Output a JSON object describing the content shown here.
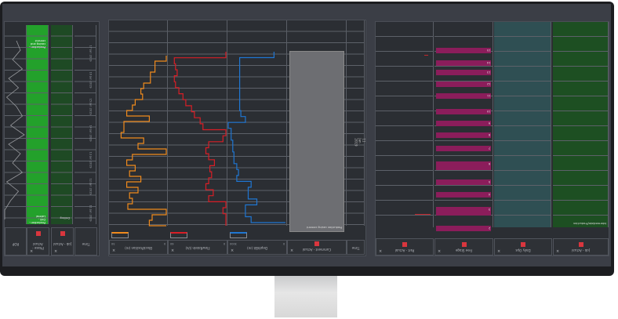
{
  "colors": {
    "orange": "#f08a1c",
    "red": "#d81e26",
    "blue": "#1f76d2",
    "green_bright": "#23a12b",
    "green_dark": "#1e4a24",
    "teal": "#2f4f53",
    "pink": "#8b1d5b",
    "gray_comment": "#6d6e72"
  },
  "left_panel": {
    "headers": [
      {
        "label": "ROP"
      },
      {
        "label": "Phase - Actual"
      },
      {
        "label": "Job - Actual"
      },
      {
        "label": "Time"
      }
    ],
    "track_labels": {
      "green_top": "Production - casing and cement",
      "green_bottom": "Production - Drill - Lateral",
      "dark_bottom": "Drilling"
    },
    "time_ticks": [
      "11 Jan 2019",
      "12 Jan 2019",
      "13 Jan 2019",
      "14 Jan 2019",
      "15 Jan 2019",
      "16 Jan 2019",
      "17 Jan 2019"
    ]
  },
  "middle_panel": {
    "headers": [
      {
        "label": "BlockPosition (m)",
        "min": "0",
        "max": "50"
      },
      {
        "label": "FlowRateIn (l/s)",
        "min": "0",
        "max": "60"
      },
      {
        "label": "DepthBit (m)",
        "min": "0",
        "max": "3000"
      },
      {
        "label": "Comment - Actual"
      },
      {
        "label": "Time"
      }
    ],
    "comment_text": "Production casing cement",
    "date_label": "11 Jan 2019",
    "traces": {
      "orange": [
        100,
        80,
        80,
        72,
        72,
        60,
        55,
        58,
        45,
        40,
        30,
        70,
        25,
        25,
        20,
        60,
        50,
        100,
        40,
        30,
        45,
        35,
        55,
        30,
        50,
        35,
        40,
        32,
        100,
        75,
        70,
        100
      ],
      "red": [
        100,
        10,
        12,
        15,
        10,
        12,
        18,
        25,
        30,
        40,
        45,
        55,
        60,
        100,
        95,
        70,
        65,
        70,
        80,
        72,
        75,
        70,
        65,
        78,
        70,
        100,
        95,
        100,
        100,
        100
      ],
      "blue": [
        80,
        20,
        20,
        20,
        20,
        20,
        20,
        20,
        20,
        20,
        22,
        30,
        0,
        5,
        5,
        8,
        8,
        10,
        10,
        15,
        18,
        15,
        40,
        35,
        35,
        50,
        30,
        30,
        40,
        100
      ]
    }
  },
  "right_panel": {
    "headers": [
      {
        "label": "Part - Actual"
      },
      {
        "label": "Free Stage"
      },
      {
        "label": "Daily Ops"
      },
      {
        "label": "Job - Actual"
      }
    ],
    "pink_bar_labels": [
      "15",
      "14",
      "13",
      "12",
      "11",
      "10",
      "9",
      "8",
      "7",
      "6",
      "5",
      "4",
      "3",
      "2",
      "1"
    ],
    "green_label": "Intermediate/Production"
  }
}
